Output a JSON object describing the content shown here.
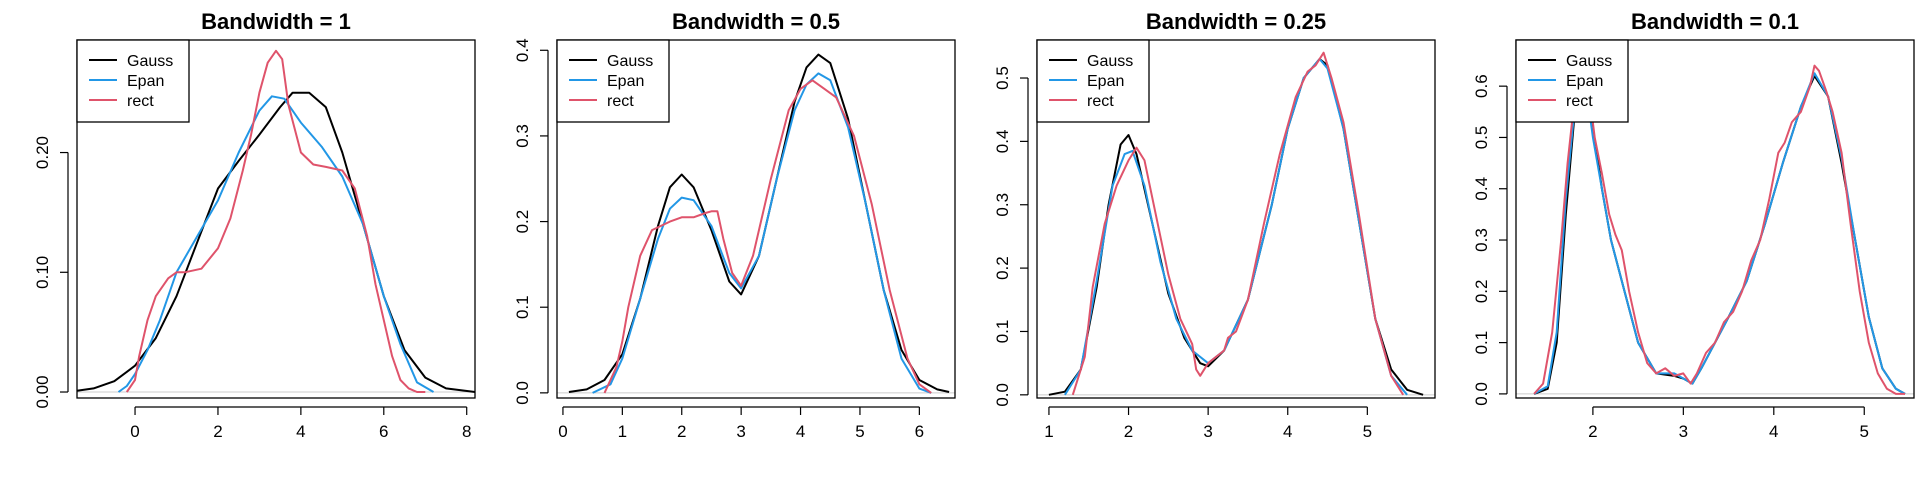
{
  "colors": {
    "Gauss": "#000000",
    "Epan": "#2297E6",
    "rect": "#DF536B",
    "baseline": "#cccccc"
  },
  "chart_data": [
    {
      "type": "line",
      "title": "Bandwidth = 1",
      "xlabel": "",
      "xlim": [
        -1.4,
        8.2
      ],
      "ylim": [
        -0.005,
        0.294
      ],
      "xticks": [
        0,
        2,
        4,
        6,
        8
      ],
      "yticks": [
        0.0,
        0.1,
        0.2
      ],
      "ytick_labels": [
        "0.00",
        "0.10",
        "0.20"
      ],
      "legend": {
        "position": "top-left",
        "entries": [
          "Gauss",
          "Epan",
          "rect"
        ]
      },
      "series": [
        {
          "name": "Gauss",
          "color": "#000000",
          "x": [
            -1.4,
            -1,
            -0.5,
            0,
            0.5,
            1,
            1.5,
            2,
            2.5,
            3,
            3.5,
            3.8,
            4.2,
            4.6,
            5,
            5.5,
            6,
            6.5,
            7,
            7.5,
            8.2
          ],
          "y": [
            0.001,
            0.003,
            0.009,
            0.022,
            0.045,
            0.08,
            0.125,
            0.17,
            0.193,
            0.215,
            0.238,
            0.25,
            0.25,
            0.238,
            0.2,
            0.14,
            0.08,
            0.035,
            0.012,
            0.003,
            0.0
          ]
        },
        {
          "name": "Epan",
          "color": "#2297E6",
          "x": [
            -0.4,
            -0.2,
            0,
            0.3,
            0.6,
            1,
            1.5,
            2,
            2.5,
            3,
            3.3,
            3.6,
            4,
            4.5,
            5,
            5.5,
            6,
            6.4,
            6.8,
            7.2
          ],
          "y": [
            0.0,
            0.005,
            0.015,
            0.035,
            0.06,
            0.1,
            0.13,
            0.16,
            0.2,
            0.235,
            0.247,
            0.245,
            0.225,
            0.205,
            0.18,
            0.14,
            0.08,
            0.04,
            0.008,
            0.0
          ]
        },
        {
          "name": "rect",
          "color": "#DF536B",
          "x": [
            -0.2,
            0,
            0.1,
            0.3,
            0.5,
            0.8,
            1.0,
            1.2,
            1.6,
            2.0,
            2.3,
            2.6,
            2.8,
            3.0,
            3.2,
            3.4,
            3.55,
            3.7,
            4.0,
            4.3,
            4.6,
            5.0,
            5.3,
            5.6,
            5.8,
            6.0,
            6.2,
            6.4,
            6.6,
            6.8,
            7.0
          ],
          "y": [
            0.0,
            0.01,
            0.03,
            0.06,
            0.08,
            0.095,
            0.1,
            0.1,
            0.103,
            0.12,
            0.145,
            0.185,
            0.215,
            0.25,
            0.275,
            0.285,
            0.278,
            0.24,
            0.2,
            0.19,
            0.188,
            0.185,
            0.17,
            0.13,
            0.09,
            0.06,
            0.03,
            0.01,
            0.003,
            0.0,
            0.0
          ]
        }
      ]
    },
    {
      "type": "line",
      "title": "Bandwidth = 0.5",
      "xlabel": "",
      "xlim": [
        -0.1,
        6.6
      ],
      "ylim": [
        -0.006,
        0.412
      ],
      "xticks": [
        0,
        1,
        2,
        3,
        4,
        5,
        6
      ],
      "yticks": [
        0.0,
        0.1,
        0.2,
        0.3,
        0.4
      ],
      "ytick_labels": [
        "0.0",
        "0.1",
        "0.2",
        "0.3",
        "0.4"
      ],
      "legend": {
        "position": "top-left",
        "entries": [
          "Gauss",
          "Epan",
          "rect"
        ]
      },
      "series": [
        {
          "name": "Gauss",
          "color": "#000000",
          "x": [
            0.1,
            0.4,
            0.7,
            1.0,
            1.3,
            1.6,
            1.8,
            2.0,
            2.2,
            2.5,
            2.8,
            3.0,
            3.3,
            3.6,
            3.9,
            4.1,
            4.3,
            4.5,
            4.8,
            5.1,
            5.4,
            5.7,
            6.0,
            6.3,
            6.5
          ],
          "y": [
            0.001,
            0.004,
            0.015,
            0.045,
            0.11,
            0.195,
            0.24,
            0.255,
            0.24,
            0.19,
            0.13,
            0.115,
            0.16,
            0.25,
            0.34,
            0.38,
            0.395,
            0.385,
            0.32,
            0.22,
            0.12,
            0.05,
            0.015,
            0.004,
            0.001
          ]
        },
        {
          "name": "Epan",
          "color": "#2297E6",
          "x": [
            0.5,
            0.8,
            1.0,
            1.3,
            1.6,
            1.8,
            2.0,
            2.2,
            2.5,
            2.8,
            3.0,
            3.3,
            3.6,
            3.9,
            4.1,
            4.3,
            4.5,
            4.8,
            5.1,
            5.4,
            5.7,
            6.0,
            6.2
          ],
          "y": [
            0.0,
            0.01,
            0.04,
            0.11,
            0.18,
            0.215,
            0.228,
            0.225,
            0.195,
            0.14,
            0.122,
            0.16,
            0.25,
            0.33,
            0.36,
            0.373,
            0.365,
            0.31,
            0.22,
            0.12,
            0.04,
            0.005,
            0.0
          ]
        },
        {
          "name": "rect",
          "color": "#DF536B",
          "x": [
            0.7,
            0.9,
            1.0,
            1.1,
            1.3,
            1.5,
            1.8,
            2.0,
            2.2,
            2.4,
            2.5,
            2.6,
            2.7,
            2.85,
            3.0,
            3.2,
            3.5,
            3.8,
            4.0,
            4.2,
            4.4,
            4.6,
            4.9,
            5.2,
            5.5,
            5.8,
            6.0,
            6.2
          ],
          "y": [
            0.0,
            0.03,
            0.06,
            0.1,
            0.16,
            0.19,
            0.2,
            0.205,
            0.205,
            0.21,
            0.212,
            0.212,
            0.18,
            0.14,
            0.125,
            0.16,
            0.25,
            0.33,
            0.355,
            0.365,
            0.355,
            0.345,
            0.3,
            0.22,
            0.12,
            0.04,
            0.01,
            0.0
          ]
        }
      ]
    },
    {
      "type": "line",
      "title": "Bandwidth = 0.25",
      "xlabel": "",
      "xlim": [
        0.85,
        5.85
      ],
      "ylim": [
        -0.005,
        0.56
      ],
      "xticks": [
        1,
        2,
        3,
        4,
        5
      ],
      "yticks": [
        0.0,
        0.1,
        0.2,
        0.3,
        0.4,
        0.5
      ],
      "ytick_labels": [
        "0.0",
        "0.1",
        "0.2",
        "0.3",
        "0.4",
        "0.5"
      ],
      "legend": {
        "position": "top-left",
        "entries": [
          "Gauss",
          "Epan",
          "rect"
        ]
      },
      "series": [
        {
          "name": "Gauss",
          "color": "#000000",
          "x": [
            1.0,
            1.2,
            1.4,
            1.6,
            1.75,
            1.9,
            2.0,
            2.1,
            2.3,
            2.5,
            2.7,
            2.9,
            3.0,
            3.2,
            3.5,
            3.8,
            4.0,
            4.2,
            4.4,
            4.5,
            4.7,
            4.9,
            5.1,
            5.3,
            5.5,
            5.7
          ],
          "y": [
            0.0,
            0.005,
            0.04,
            0.17,
            0.3,
            0.395,
            0.41,
            0.38,
            0.27,
            0.16,
            0.09,
            0.05,
            0.045,
            0.07,
            0.15,
            0.3,
            0.42,
            0.5,
            0.53,
            0.52,
            0.42,
            0.27,
            0.12,
            0.04,
            0.008,
            0.0
          ]
        },
        {
          "name": "Epan",
          "color": "#2297E6",
          "x": [
            1.2,
            1.4,
            1.6,
            1.8,
            1.95,
            2.05,
            2.2,
            2.4,
            2.6,
            2.8,
            3.0,
            3.2,
            3.5,
            3.8,
            4.0,
            4.2,
            4.4,
            4.5,
            4.7,
            4.9,
            5.1,
            5.3,
            5.5
          ],
          "y": [
            0.0,
            0.04,
            0.18,
            0.33,
            0.38,
            0.385,
            0.33,
            0.21,
            0.12,
            0.07,
            0.05,
            0.07,
            0.15,
            0.3,
            0.42,
            0.5,
            0.53,
            0.515,
            0.42,
            0.27,
            0.12,
            0.03,
            0.0
          ]
        },
        {
          "name": "rect",
          "color": "#DF536B",
          "x": [
            1.3,
            1.45,
            1.55,
            1.7,
            1.85,
            2.0,
            2.1,
            2.2,
            2.35,
            2.5,
            2.65,
            2.8,
            2.85,
            2.9,
            3.0,
            3.1,
            3.2,
            3.25,
            3.35,
            3.5,
            3.7,
            3.9,
            4.1,
            4.25,
            4.35,
            4.45,
            4.55,
            4.7,
            4.9,
            5.1,
            5.3,
            5.45
          ],
          "y": [
            0.0,
            0.06,
            0.17,
            0.27,
            0.33,
            0.37,
            0.39,
            0.37,
            0.28,
            0.19,
            0.12,
            0.08,
            0.04,
            0.03,
            0.05,
            0.06,
            0.07,
            0.09,
            0.1,
            0.15,
            0.27,
            0.38,
            0.47,
            0.51,
            0.52,
            0.54,
            0.5,
            0.43,
            0.28,
            0.12,
            0.03,
            0.0
          ]
        }
      ]
    },
    {
      "type": "line",
      "title": "Bandwidth = 0.1",
      "xlabel": "",
      "xlim": [
        1.15,
        5.55
      ],
      "ylim": [
        -0.008,
        0.69
      ],
      "xticks": [
        2,
        3,
        4,
        5
      ],
      "yticks": [
        0.0,
        0.1,
        0.2,
        0.3,
        0.4,
        0.5,
        0.6
      ],
      "ytick_labels": [
        "0.0",
        "0.1",
        "0.2",
        "0.3",
        "0.4",
        "0.5",
        "0.6"
      ],
      "legend": {
        "position": "top-left",
        "entries": [
          "Gauss",
          "Epan",
          "rect"
        ]
      },
      "series": [
        {
          "name": "Gauss",
          "color": "#000000",
          "x": [
            1.35,
            1.5,
            1.6,
            1.7,
            1.8,
            1.9,
            2.0,
            2.1,
            2.2,
            2.35,
            2.5,
            2.7,
            2.9,
            3.0,
            3.1,
            3.2,
            3.35,
            3.5,
            3.7,
            3.9,
            4.1,
            4.3,
            4.45,
            4.6,
            4.75,
            4.9,
            5.05,
            5.2,
            5.35,
            5.45
          ],
          "y": [
            0.0,
            0.01,
            0.1,
            0.35,
            0.55,
            0.62,
            0.52,
            0.4,
            0.3,
            0.2,
            0.1,
            0.04,
            0.035,
            0.03,
            0.02,
            0.05,
            0.1,
            0.15,
            0.22,
            0.33,
            0.45,
            0.56,
            0.62,
            0.58,
            0.45,
            0.3,
            0.15,
            0.05,
            0.01,
            0.0
          ]
        },
        {
          "name": "Epan",
          "color": "#2297E6",
          "x": [
            1.35,
            1.5,
            1.6,
            1.7,
            1.8,
            1.9,
            2.0,
            2.1,
            2.2,
            2.35,
            2.5,
            2.7,
            2.9,
            3.0,
            3.1,
            3.2,
            3.35,
            3.5,
            3.7,
            3.9,
            4.1,
            4.3,
            4.45,
            4.6,
            4.75,
            4.9,
            5.05,
            5.2,
            5.35,
            5.45
          ],
          "y": [
            0.0,
            0.015,
            0.12,
            0.38,
            0.56,
            0.63,
            0.5,
            0.4,
            0.3,
            0.2,
            0.1,
            0.04,
            0.04,
            0.03,
            0.02,
            0.05,
            0.1,
            0.15,
            0.22,
            0.33,
            0.45,
            0.56,
            0.625,
            0.58,
            0.46,
            0.3,
            0.15,
            0.05,
            0.01,
            0.0
          ]
        },
        {
          "name": "rect",
          "color": "#DF536B",
          "x": [
            1.35,
            1.45,
            1.55,
            1.65,
            1.72,
            1.8,
            1.88,
            1.95,
            2.02,
            2.1,
            2.18,
            2.25,
            2.32,
            2.4,
            2.5,
            2.6,
            2.7,
            2.8,
            2.9,
            3.0,
            3.08,
            3.15,
            3.25,
            3.35,
            3.45,
            3.55,
            3.65,
            3.75,
            3.85,
            3.95,
            4.05,
            4.12,
            4.2,
            4.3,
            4.4,
            4.45,
            4.5,
            4.58,
            4.65,
            4.75,
            4.85,
            4.95,
            5.05,
            5.15,
            5.25,
            5.35,
            5.45
          ],
          "y": [
            0.0,
            0.02,
            0.12,
            0.3,
            0.45,
            0.58,
            0.66,
            0.6,
            0.5,
            0.43,
            0.35,
            0.31,
            0.28,
            0.2,
            0.12,
            0.06,
            0.04,
            0.05,
            0.035,
            0.04,
            0.02,
            0.04,
            0.08,
            0.1,
            0.14,
            0.16,
            0.2,
            0.26,
            0.3,
            0.38,
            0.47,
            0.49,
            0.53,
            0.55,
            0.6,
            0.64,
            0.63,
            0.59,
            0.55,
            0.47,
            0.33,
            0.2,
            0.1,
            0.04,
            0.01,
            0.0,
            0.0
          ]
        }
      ]
    }
  ]
}
